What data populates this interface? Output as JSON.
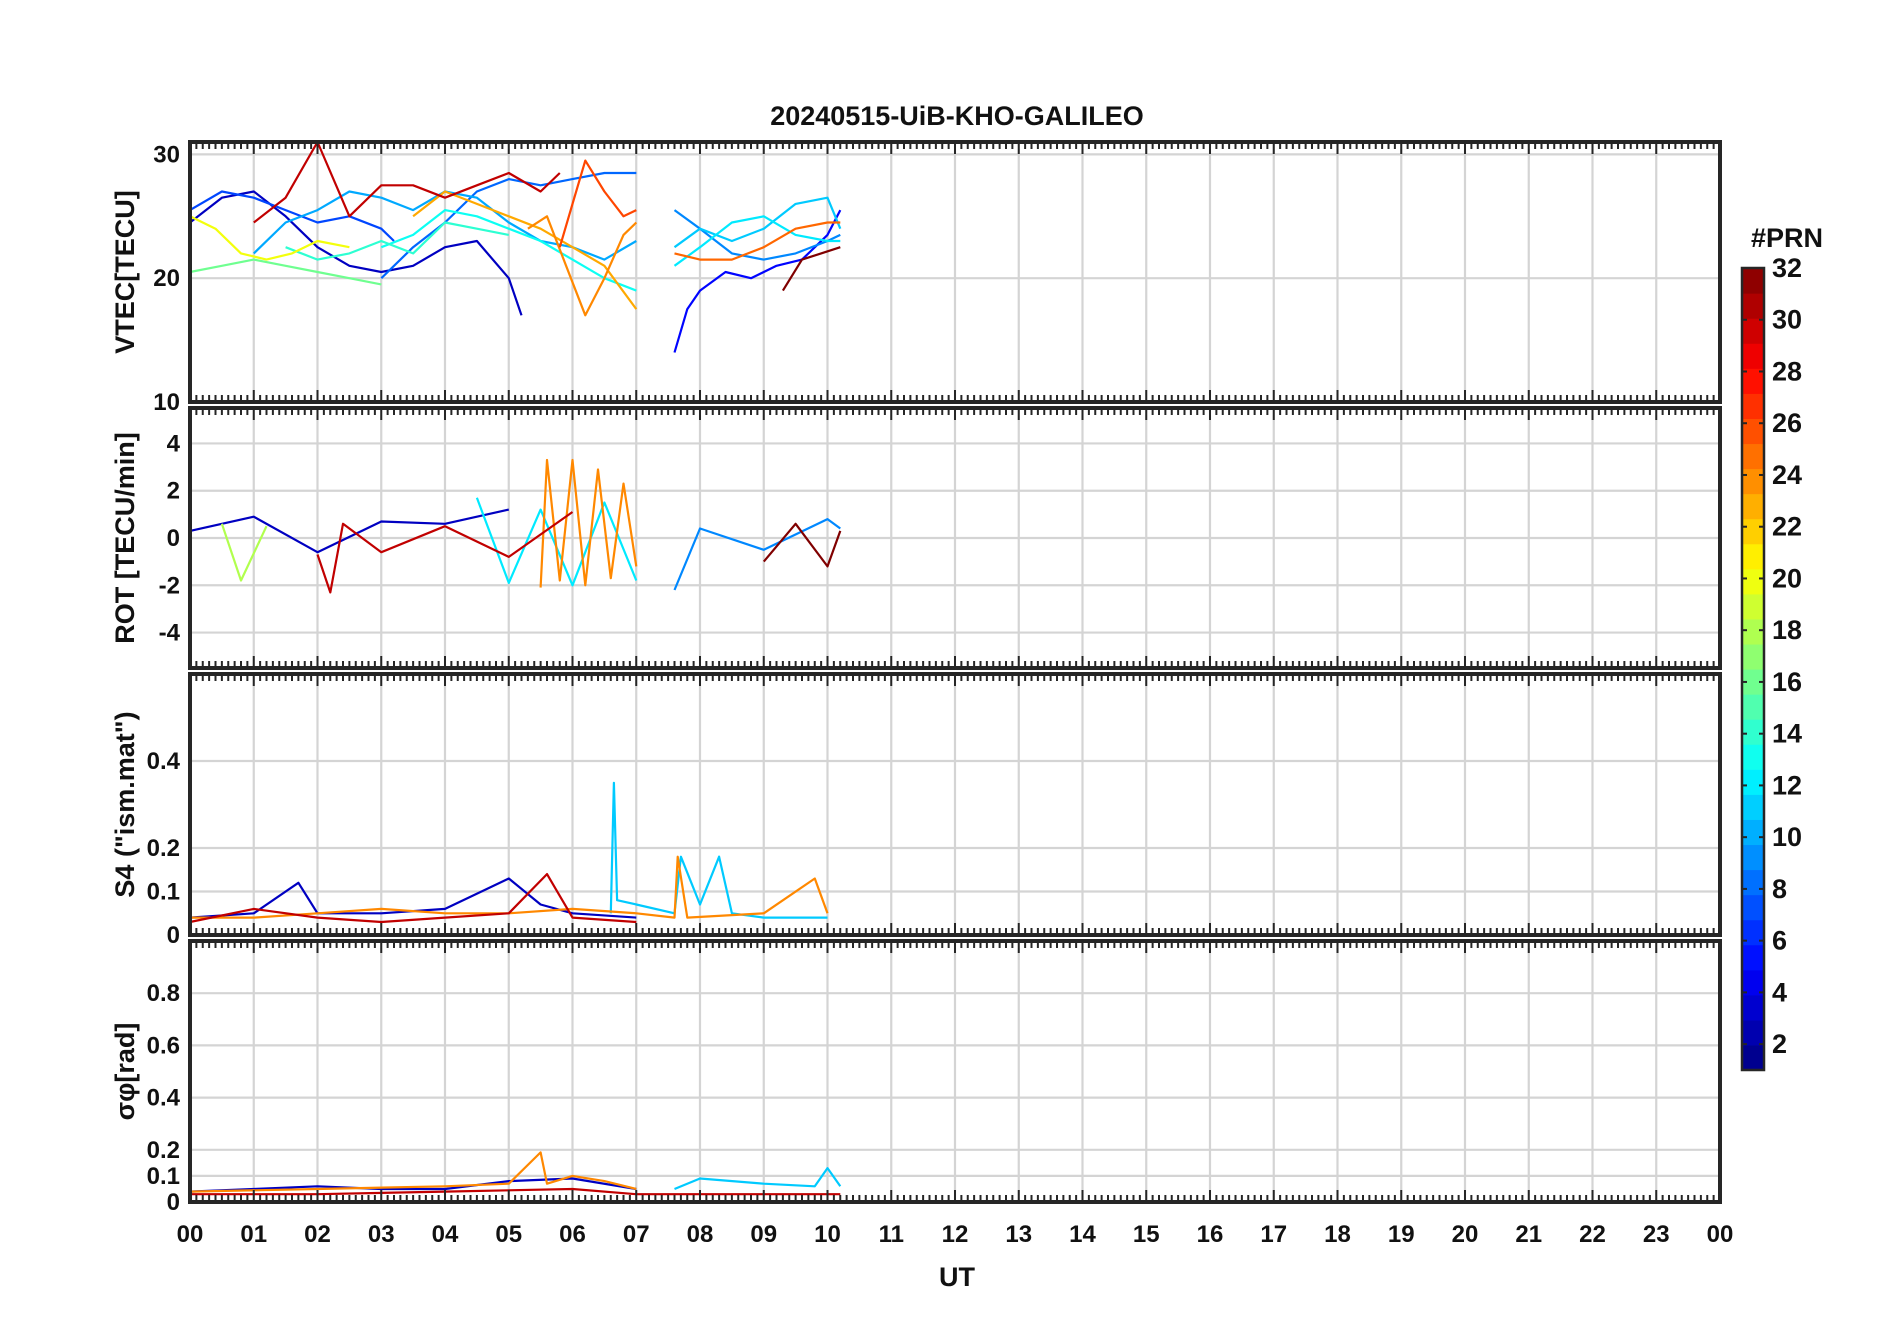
{
  "title": "20240515-UiB-KHO-GALILEO",
  "xlabel": "UT",
  "x_tick_labels": [
    "00",
    "01",
    "02",
    "03",
    "04",
    "05",
    "06",
    "07",
    "08",
    "09",
    "10",
    "11",
    "12",
    "13",
    "14",
    "15",
    "16",
    "17",
    "18",
    "19",
    "20",
    "21",
    "22",
    "23",
    "00"
  ],
  "colorbar": {
    "label": "#PRN",
    "range": [
      1,
      32
    ],
    "tick_labels": [
      "2",
      "4",
      "6",
      "8",
      "10",
      "12",
      "14",
      "16",
      "18",
      "20",
      "22",
      "24",
      "26",
      "28",
      "30",
      "32"
    ],
    "colormap": "jet"
  },
  "chart_data": [
    {
      "type": "line",
      "panel": "vtec",
      "ylabel": "VTEC[TECU]",
      "xlim": [
        0,
        24
      ],
      "ylim": [
        10,
        31
      ],
      "y_tick_labels": [
        "10",
        "20",
        "30"
      ],
      "grid": true,
      "series": [
        {
          "prn": 3,
          "x": [
            0.0,
            0.5,
            1.0,
            1.5,
            2.0,
            2.5,
            3.0,
            3.5,
            4.0,
            4.5,
            5.0,
            5.2
          ],
          "y": [
            24.5,
            26.5,
            27.0,
            25.0,
            22.5,
            21.0,
            20.5,
            21.0,
            22.5,
            23.0,
            20.0,
            17.0
          ]
        },
        {
          "prn": 5,
          "x": [
            7.6,
            7.8,
            8.0,
            8.4,
            8.8,
            9.2,
            9.6,
            10.0,
            10.2
          ],
          "y": [
            14.0,
            17.5,
            19.0,
            20.5,
            20.0,
            21.0,
            21.5,
            23.5,
            25.5
          ]
        },
        {
          "prn": 7,
          "x": [
            0.0,
            0.5,
            1.0,
            1.5,
            2.0,
            2.5,
            3.0,
            3.2
          ],
          "y": [
            25.5,
            27.0,
            26.5,
            25.5,
            24.5,
            25.0,
            24.0,
            23.0
          ]
        },
        {
          "prn": 8,
          "x": [
            3.0,
            3.5,
            4.0,
            4.5,
            5.0,
            5.5,
            6.0,
            6.5,
            7.0
          ],
          "y": [
            20.0,
            22.5,
            24.5,
            27.0,
            28.0,
            27.5,
            28.0,
            28.5,
            28.5
          ]
        },
        {
          "prn": 9,
          "x": [
            7.6,
            8.0,
            8.5,
            9.0,
            9.5,
            10.0,
            10.2
          ],
          "y": [
            25.5,
            24.0,
            22.0,
            21.5,
            22.0,
            23.0,
            23.5
          ]
        },
        {
          "prn": 10,
          "x": [
            1.0,
            1.5,
            2.0,
            2.5,
            3.0,
            3.5,
            4.0,
            4.5,
            5.0,
            5.5,
            6.0,
            6.5,
            7.0
          ],
          "y": [
            22.0,
            24.5,
            25.5,
            27.0,
            26.5,
            25.5,
            27.0,
            26.5,
            24.5,
            23.0,
            22.5,
            21.5,
            23.0
          ]
        },
        {
          "prn": 11,
          "x": [
            7.6,
            8.0,
            8.5,
            9.0,
            9.5,
            10.0,
            10.2
          ],
          "y": [
            22.5,
            24.0,
            23.0,
            24.0,
            26.0,
            26.5,
            24.0
          ]
        },
        {
          "prn": 12,
          "x": [
            7.6,
            8.0,
            8.5,
            9.0,
            9.5,
            10.0,
            10.2
          ],
          "y": [
            21.0,
            22.5,
            24.5,
            25.0,
            23.5,
            23.0,
            23.0
          ]
        },
        {
          "prn": 13,
          "x": [
            3.0,
            3.5,
            4.0,
            4.5,
            5.0,
            5.5,
            6.0,
            6.5,
            7.0
          ],
          "y": [
            22.5,
            23.5,
            25.5,
            25.0,
            24.0,
            23.0,
            21.5,
            20.0,
            19.0
          ]
        },
        {
          "prn": 14,
          "x": [
            1.5,
            2.0,
            2.5,
            3.0,
            3.5,
            4.0,
            4.5,
            5.0
          ],
          "y": [
            22.5,
            21.5,
            22.0,
            23.0,
            22.0,
            24.5,
            24.0,
            23.5
          ]
        },
        {
          "prn": 16,
          "x": [
            0.0,
            0.5,
            1.0,
            1.5,
            2.0,
            2.5,
            3.0
          ],
          "y": [
            20.5,
            21.0,
            21.5,
            21.0,
            20.5,
            20.0,
            19.5
          ]
        },
        {
          "prn": 20,
          "x": [
            0.0,
            0.4,
            0.8,
            1.2,
            1.6,
            2.0,
            2.5
          ],
          "y": [
            25.0,
            24.0,
            22.0,
            21.5,
            22.0,
            23.0,
            22.5
          ]
        },
        {
          "prn": 23,
          "x": [
            3.5,
            4.0,
            4.5,
            5.0,
            5.5,
            6.0,
            6.5,
            7.0
          ],
          "y": [
            25.0,
            27.0,
            26.0,
            25.0,
            24.0,
            22.5,
            21.0,
            17.5
          ]
        },
        {
          "prn": 24,
          "x": [
            5.3,
            5.6,
            5.9,
            6.2,
            6.5,
            6.8,
            7.0
          ],
          "y": [
            24.0,
            25.0,
            21.0,
            17.0,
            20.0,
            23.5,
            24.5
          ]
        },
        {
          "prn": 25,
          "x": [
            7.6,
            8.0,
            8.5,
            9.0,
            9.5,
            10.0,
            10.2
          ],
          "y": [
            22.0,
            21.5,
            21.5,
            22.5,
            24.0,
            24.5,
            24.5
          ]
        },
        {
          "prn": 26,
          "x": [
            5.8,
            6.0,
            6.2,
            6.5,
            6.8,
            7.0
          ],
          "y": [
            22.5,
            26.0,
            29.5,
            27.0,
            25.0,
            25.5
          ]
        },
        {
          "prn": 30,
          "x": [
            1.0,
            1.5,
            2.0,
            2.5,
            3.0,
            3.5,
            4.0,
            4.5,
            5.0,
            5.5,
            5.8
          ],
          "y": [
            24.5,
            26.5,
            31.0,
            25.0,
            27.5,
            27.5,
            26.5,
            27.5,
            28.5,
            27.0,
            28.5
          ]
        },
        {
          "prn": 32,
          "x": [
            9.3,
            9.6,
            9.9,
            10.2
          ],
          "y": [
            19.0,
            21.5,
            22.0,
            22.5
          ]
        }
      ]
    },
    {
      "type": "line",
      "panel": "rot",
      "ylabel": "ROT [TECU/min]",
      "xlim": [
        0,
        24
      ],
      "ylim": [
        -5.5,
        5.5
      ],
      "y_tick_labels": [
        "-4",
        "-2",
        "0",
        "2",
        "4"
      ],
      "grid": true,
      "series": [
        {
          "prn": 3,
          "x": [
            0.0,
            1.0,
            2.0,
            3.0,
            4.0,
            5.0
          ],
          "y": [
            0.3,
            0.9,
            -0.6,
            0.7,
            0.6,
            1.2
          ]
        },
        {
          "prn": 9,
          "x": [
            7.6,
            8.0,
            9.0,
            10.0,
            10.2
          ],
          "y": [
            -2.2,
            0.4,
            -0.5,
            0.8,
            0.4
          ]
        },
        {
          "prn": 12,
          "x": [
            4.5,
            5.0,
            5.5,
            6.0,
            6.5,
            7.0
          ],
          "y": [
            1.7,
            -1.9,
            1.2,
            -2.0,
            1.5,
            -1.8
          ]
        },
        {
          "prn": 18,
          "x": [
            0.5,
            0.8,
            1.2
          ],
          "y": [
            0.6,
            -1.8,
            0.5
          ]
        },
        {
          "prn": 24,
          "x": [
            5.5,
            5.6,
            5.8,
            6.0,
            6.2,
            6.4,
            6.6,
            6.8,
            7.0
          ],
          "y": [
            -2.1,
            3.3,
            -1.8,
            3.3,
            -2.0,
            2.9,
            -1.7,
            2.3,
            -1.2
          ]
        },
        {
          "prn": 30,
          "x": [
            2.0,
            2.2,
            2.4,
            3.0,
            4.0,
            5.0,
            6.0
          ],
          "y": [
            -0.7,
            -2.3,
            0.6,
            -0.6,
            0.5,
            -0.8,
            1.1
          ]
        },
        {
          "prn": 32,
          "x": [
            9.0,
            9.5,
            10.0,
            10.2
          ],
          "y": [
            -1.0,
            0.6,
            -1.2,
            0.3
          ]
        }
      ]
    },
    {
      "type": "line",
      "panel": "s4",
      "ylabel": "S4 (\"ism.mat\")",
      "xlim": [
        0,
        24
      ],
      "ylim": [
        0,
        0.6
      ],
      "y_tick_labels": [
        "0",
        "0.1",
        "0.2",
        "0.4"
      ],
      "grid": true,
      "series": [
        {
          "prn": 3,
          "x": [
            0.0,
            1.0,
            1.7,
            2.0,
            3.0,
            4.0,
            5.0,
            5.5,
            6.0,
            7.0
          ],
          "y": [
            0.04,
            0.05,
            0.12,
            0.05,
            0.05,
            0.06,
            0.13,
            0.07,
            0.05,
            0.04
          ]
        },
        {
          "prn": 11,
          "x": [
            6.6,
            6.65,
            6.7,
            7.0,
            7.6,
            7.7,
            8.0,
            8.3,
            8.5,
            9.0,
            10.0
          ],
          "y": [
            0.05,
            0.35,
            0.08,
            0.07,
            0.05,
            0.18,
            0.07,
            0.18,
            0.05,
            0.04,
            0.04
          ]
        },
        {
          "prn": 24,
          "x": [
            0.0,
            1.0,
            2.0,
            3.0,
            4.0,
            5.0,
            6.0,
            7.0,
            7.6,
            7.65,
            7.8,
            9.0,
            9.8,
            10.0
          ],
          "y": [
            0.04,
            0.04,
            0.05,
            0.06,
            0.05,
            0.05,
            0.06,
            0.05,
            0.04,
            0.18,
            0.04,
            0.05,
            0.13,
            0.05
          ]
        },
        {
          "prn": 30,
          "x": [
            0.0,
            1.0,
            2.0,
            3.0,
            4.0,
            5.0,
            5.6,
            6.0,
            7.0
          ],
          "y": [
            0.03,
            0.06,
            0.04,
            0.03,
            0.04,
            0.05,
            0.14,
            0.04,
            0.03
          ]
        }
      ]
    },
    {
      "type": "line",
      "panel": "sigma_phi",
      "ylabel": "σφ[rad]",
      "xlim": [
        0,
        24
      ],
      "ylim": [
        0,
        1
      ],
      "y_tick_labels": [
        "0",
        "0.1",
        "0.2",
        "0.4",
        "0.6",
        "0.8"
      ],
      "grid": true,
      "series": [
        {
          "prn": 3,
          "x": [
            0.0,
            1.0,
            2.0,
            3.0,
            4.0,
            5.0,
            6.0,
            7.0
          ],
          "y": [
            0.04,
            0.05,
            0.06,
            0.05,
            0.05,
            0.08,
            0.09,
            0.05
          ]
        },
        {
          "prn": 11,
          "x": [
            7.6,
            8.0,
            9.0,
            9.8,
            10.0,
            10.2
          ],
          "y": [
            0.05,
            0.09,
            0.07,
            0.06,
            0.13,
            0.06
          ]
        },
        {
          "prn": 24,
          "x": [
            0.0,
            2.0,
            4.0,
            5.0,
            5.5,
            5.6,
            6.0,
            6.5,
            7.0
          ],
          "y": [
            0.04,
            0.05,
            0.06,
            0.07,
            0.19,
            0.07,
            0.1,
            0.08,
            0.05
          ]
        },
        {
          "prn": 30,
          "x": [
            0.0,
            2.0,
            4.0,
            6.0,
            7.0,
            7.6,
            9.0,
            10.2
          ],
          "y": [
            0.03,
            0.03,
            0.04,
            0.05,
            0.03,
            0.03,
            0.03,
            0.03
          ]
        }
      ]
    }
  ]
}
